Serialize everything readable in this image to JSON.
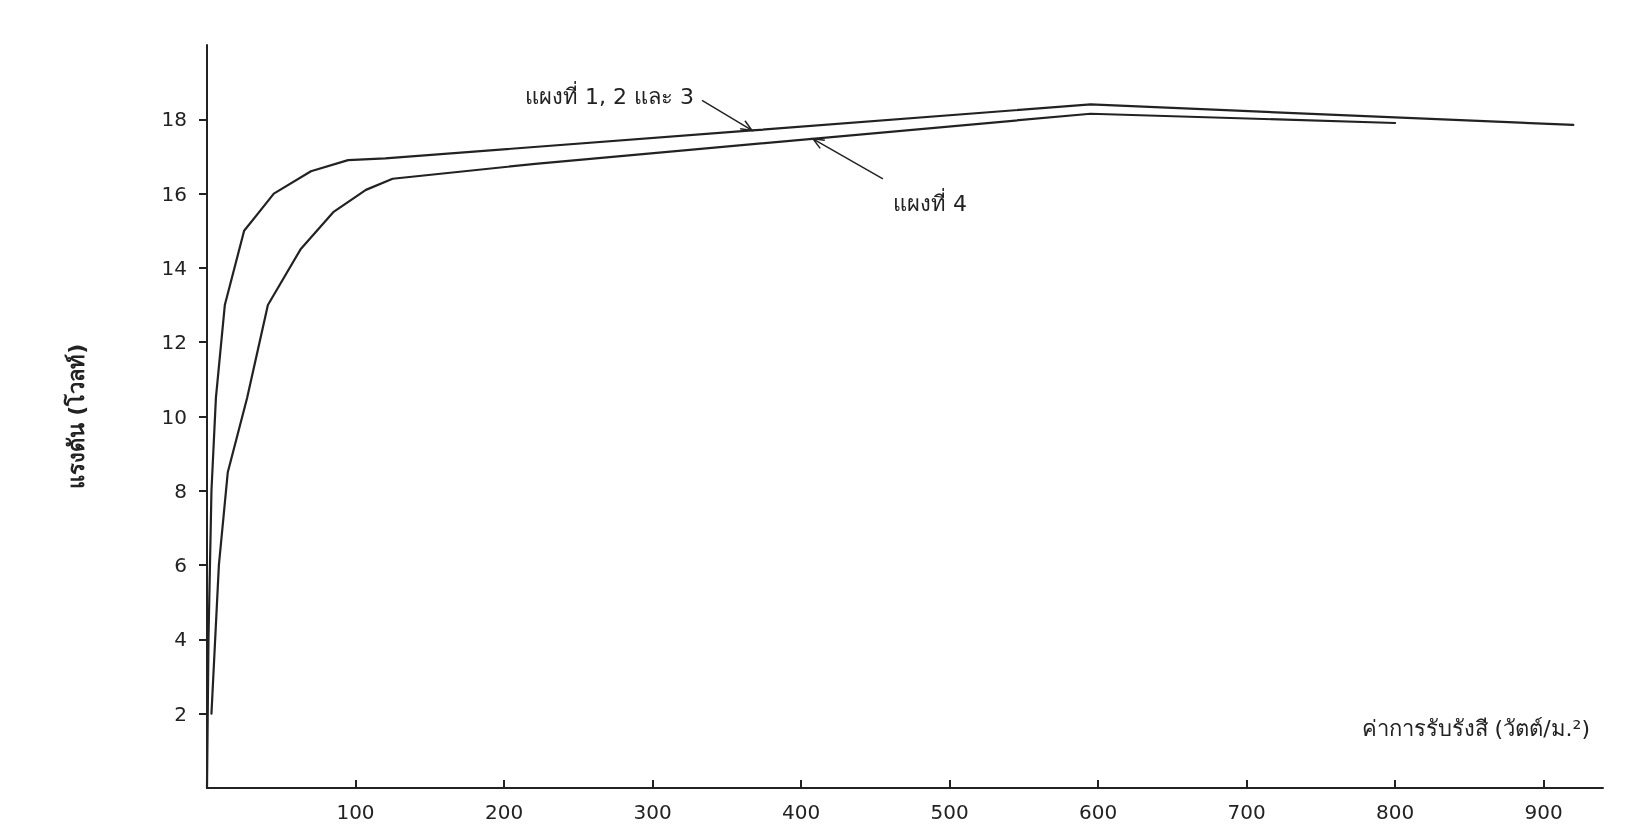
{
  "chart_data": {
    "type": "line",
    "xlabel": "ค่าการรับรังสี (วัตต์/ม.²)",
    "ylabel": "แรงดัน (โวลท์)",
    "xlim": [
      0,
      940
    ],
    "xticks": [
      100,
      200,
      300,
      400,
      500,
      600,
      700,
      800,
      900
    ],
    "ylim": [
      0,
      20
    ],
    "yticks": [
      2,
      4,
      6,
      8,
      10,
      12,
      14,
      16,
      18
    ],
    "grid": false,
    "legend": false,
    "marker": "none",
    "line_style": "solid",
    "series": [
      {
        "name": "แผงที่ 1, 2 และ 3",
        "color": "#222222",
        "x": [
          0,
          1,
          3,
          6,
          12,
          25,
          45,
          70,
          95,
          120,
          367,
          595,
          920
        ],
        "values": [
          0,
          4,
          8,
          10.5,
          13,
          15,
          16,
          16.6,
          16.9,
          16.95,
          17.7,
          18.4,
          17.85
        ]
      },
      {
        "name": "แผงที่ 4",
        "color": "#222222",
        "x": [
          3,
          8,
          14,
          27,
          41,
          63,
          85,
          107,
          125,
          221,
          595,
          800
        ],
        "values": [
          2,
          6,
          8.5,
          10.5,
          13,
          14.5,
          15.5,
          16.1,
          16.4,
          16.8,
          18.15,
          17.9
        ]
      }
    ]
  }
}
